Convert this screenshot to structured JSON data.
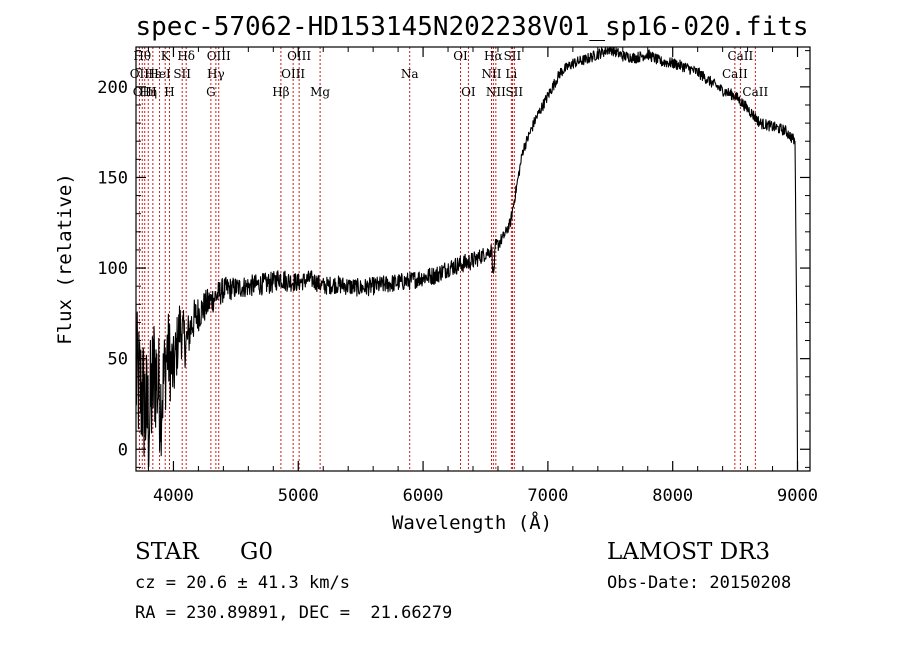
{
  "chart_data": {
    "type": "line",
    "title": "spec-57062-HD153145N202238V01_sp16-020.fits",
    "xlabel": "Wavelength (Å)",
    "ylabel": "Flux (relative)",
    "xlim": [
      3700,
      9100
    ],
    "ylim": [
      -12,
      222
    ],
    "xticks": [
      4000,
      5000,
      6000,
      7000,
      8000,
      9000
    ],
    "yticks": [
      0,
      50,
      100,
      150,
      200
    ],
    "grid": false,
    "series": [
      {
        "name": "flux",
        "x": [
          3700,
          3750,
          3800,
          3850,
          3900,
          3950,
          4000,
          4050,
          4100,
          4150,
          4200,
          4300,
          4400,
          4500,
          4600,
          4700,
          4800,
          4850,
          4900,
          5000,
          5100,
          5200,
          5300,
          5400,
          5500,
          5600,
          5700,
          5800,
          5900,
          6000,
          6100,
          6200,
          6300,
          6400,
          6500,
          6550,
          6563,
          6580,
          6600,
          6650,
          6700,
          6750,
          6800,
          6900,
          7000,
          7100,
          7200,
          7300,
          7400,
          7500,
          7600,
          7700,
          7800,
          7900,
          8000,
          8100,
          8200,
          8300,
          8400,
          8500,
          8600,
          8700,
          8800,
          8900,
          8980,
          8995,
          9000
        ],
        "values": [
          40,
          30,
          15,
          45,
          25,
          55,
          42,
          68,
          58,
          70,
          75,
          82,
          88,
          89,
          90,
          91,
          92,
          95,
          93,
          92,
          94,
          90,
          91,
          90,
          89,
          90,
          91,
          92,
          93,
          95,
          96,
          100,
          102,
          104,
          108,
          110,
          95,
          112,
          113,
          118,
          125,
          145,
          165,
          182,
          195,
          208,
          213,
          215,
          218,
          221,
          217,
          216,
          218,
          214,
          213,
          211,
          208,
          203,
          198,
          195,
          188,
          180,
          178,
          176,
          170,
          60,
          -12
        ],
        "noise": [
          38,
          38,
          38,
          38,
          30,
          25,
          20,
          16,
          14,
          12,
          10,
          8,
          7,
          6,
          6,
          6,
          6,
          6,
          6,
          5,
          5,
          5,
          5,
          5,
          5,
          5,
          5,
          5,
          5,
          5,
          5,
          5,
          5,
          5,
          4,
          4,
          4,
          4,
          4,
          3,
          3,
          3,
          3,
          3,
          3,
          3,
          3,
          3,
          3,
          3,
          3,
          3,
          3,
          3,
          3,
          3,
          3,
          3,
          3,
          3,
          3,
          3,
          3,
          3,
          3,
          0,
          0
        ]
      }
    ],
    "lines": [
      {
        "wave": 3750,
        "label": "Hθ",
        "row": 0
      },
      {
        "wave": 3727,
        "label": "OII",
        "row": 1
      },
      {
        "wave": 3770,
        "label": "OIII",
        "row": 2
      },
      {
        "wave": 3798,
        "label": "Hη",
        "row": 2
      },
      {
        "wave": 3835,
        "label": "Hε",
        "row": 1
      },
      {
        "wave": 3934,
        "label": "K",
        "row": 0
      },
      {
        "wave": 3889,
        "label": "HeI",
        "row": 1
      },
      {
        "wave": 3968,
        "label": "H",
        "row": 2
      },
      {
        "wave": 4070,
        "label": "SII",
        "row": 1
      },
      {
        "wave": 4102,
        "label": "Hδ",
        "row": 0
      },
      {
        "wave": 4300,
        "label": "G",
        "row": 2
      },
      {
        "wave": 4340,
        "label": "Hγ",
        "row": 1
      },
      {
        "wave": 4363,
        "label": "OIII",
        "row": 0
      },
      {
        "wave": 4861,
        "label": "Hβ",
        "row": 2
      },
      {
        "wave": 4959,
        "label": "OIII",
        "row": 1
      },
      {
        "wave": 5007,
        "label": "OIII",
        "row": 0
      },
      {
        "wave": 5175,
        "label": "Mg",
        "row": 2
      },
      {
        "wave": 5893,
        "label": "Na",
        "row": 1
      },
      {
        "wave": 6300,
        "label": "OI",
        "row": 0
      },
      {
        "wave": 6363,
        "label": "OI",
        "row": 2
      },
      {
        "wave": 6548,
        "label": "NII",
        "row": 1
      },
      {
        "wave": 6563,
        "label": "Hα",
        "row": 0
      },
      {
        "wave": 6583,
        "label": "NII",
        "row": 2
      },
      {
        "wave": 6707,
        "label": "Li",
        "row": 1
      },
      {
        "wave": 6716,
        "label": "SII",
        "row": 0
      },
      {
        "wave": 6731,
        "label": "SII",
        "row": 2
      },
      {
        "wave": 8498,
        "label": "CaII",
        "row": 1
      },
      {
        "wave": 8542,
        "label": "CaII",
        "row": 0
      },
      {
        "wave": 8662,
        "label": "CaII",
        "row": 2
      }
    ]
  },
  "info": {
    "class_label": "STAR",
    "subclass": "G0",
    "survey": "LAMOST DR3",
    "cz_line": "cz = 20.6 ± 41.3 km/s",
    "obs_line": "Obs-Date: 20150208",
    "radec_line": "RA = 230.89891, DEC =  21.66279"
  },
  "style": {
    "axis_color": "#000000",
    "line_marker_color": "#cc0000",
    "flux_color": "#000000"
  }
}
